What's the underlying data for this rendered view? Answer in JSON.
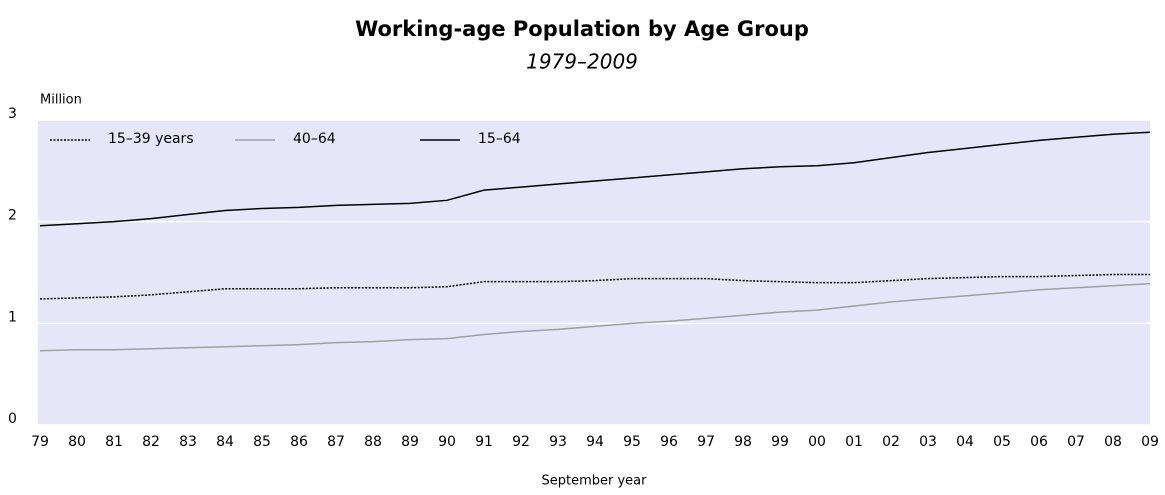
{
  "chart_data": {
    "type": "line",
    "title": "Working-age Population by Age Group",
    "subtitle": "1979–2009",
    "y_label": "Million",
    "x_label": "September year",
    "categories": [
      "79",
      "80",
      "81",
      "82",
      "83",
      "84",
      "85",
      "86",
      "87",
      "88",
      "89",
      "90",
      "91",
      "92",
      "93",
      "94",
      "95",
      "96",
      "97",
      "98",
      "99",
      "00",
      "01",
      "02",
      "03",
      "04",
      "05",
      "06",
      "07",
      "08",
      "09"
    ],
    "series": [
      {
        "name": "15–39 years",
        "color": "#000000",
        "dashed": true,
        "values": [
          1.24,
          1.25,
          1.26,
          1.28,
          1.31,
          1.34,
          1.34,
          1.34,
          1.35,
          1.35,
          1.35,
          1.36,
          1.41,
          1.41,
          1.41,
          1.42,
          1.44,
          1.44,
          1.44,
          1.42,
          1.41,
          1.4,
          1.4,
          1.42,
          1.44,
          1.45,
          1.46,
          1.46,
          1.47,
          1.48,
          1.48
        ]
      },
      {
        "name": "40–64",
        "color": "#a0a0a0",
        "values": [
          0.73,
          0.74,
          0.74,
          0.75,
          0.76,
          0.77,
          0.78,
          0.79,
          0.81,
          0.82,
          0.84,
          0.85,
          0.89,
          0.92,
          0.94,
          0.97,
          1.0,
          1.02,
          1.05,
          1.08,
          1.11,
          1.13,
          1.17,
          1.21,
          1.24,
          1.27,
          1.3,
          1.33,
          1.35,
          1.37,
          1.39
        ]
      },
      {
        "name": "15–64",
        "color": "#000000",
        "values": [
          1.96,
          1.98,
          2.0,
          2.03,
          2.07,
          2.11,
          2.13,
          2.14,
          2.16,
          2.17,
          2.18,
          2.21,
          2.31,
          2.34,
          2.37,
          2.4,
          2.43,
          2.46,
          2.49,
          2.52,
          2.54,
          2.55,
          2.58,
          2.63,
          2.68,
          2.72,
          2.76,
          2.8,
          2.83,
          2.86,
          2.88
        ]
      }
    ],
    "ylim": [
      0,
      3
    ],
    "yticks": [
      0,
      1,
      2,
      3
    ],
    "grid": true,
    "legend": "top-left"
  }
}
